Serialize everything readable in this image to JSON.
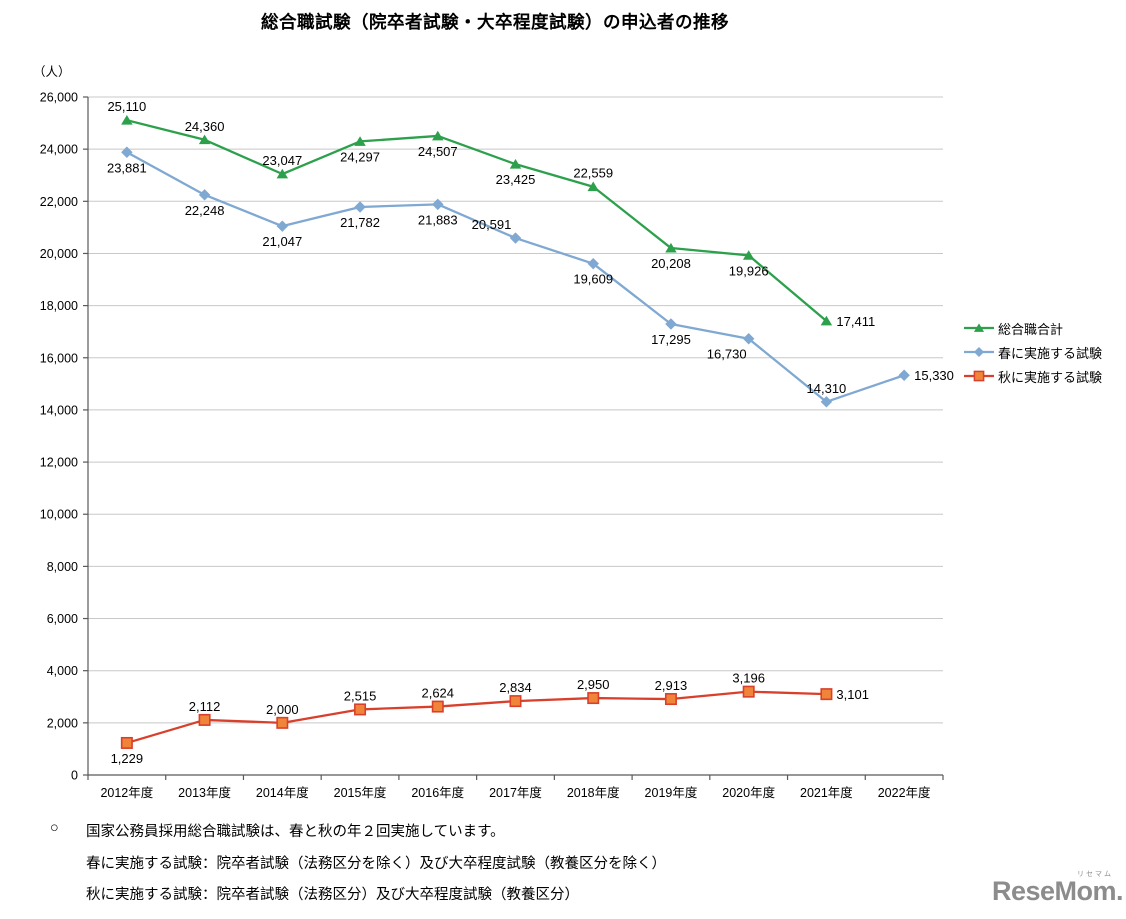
{
  "title": "総合職試験（院卒者試験・大卒程度試験）の申込者の推移",
  "y_axis_unit": "（人）",
  "legend": [
    {
      "label": "総合職合計"
    },
    {
      "label": "春に実施する試験"
    },
    {
      "label": "秋に実施する試験"
    }
  ],
  "notes": {
    "bullet": "○",
    "line1": "国家公務員採用総合職試験は、春と秋の年２回実施しています。",
    "line2": "春に実施する試験：院卒者試験（法務区分を除く）及び大卒程度試験（教養区分を除く）",
    "line3": "秋に実施する試験：院卒者試験（法務区分）及び大卒程度試験（教養区分）"
  },
  "logo": {
    "text": "ReseMom.",
    "ruby": "リセマム"
  },
  "colors": {
    "grid": "#c8c8c8",
    "axis": "#595959",
    "text": "#000000",
    "green": "#2da04c",
    "blue": "#7fa8d2",
    "red": "#d9402c",
    "orange": "#f0853a"
  },
  "chart_data": {
    "type": "line",
    "categories": [
      "2012年度",
      "2013年度",
      "2014年度",
      "2015年度",
      "2016年度",
      "2017年度",
      "2018年度",
      "2019年度",
      "2020年度",
      "2021年度",
      "2022年度"
    ],
    "title": "総合職試験（院卒者試験・大卒程度試験）の申込者の推移",
    "xlabel": "",
    "ylabel": "（人）",
    "ylim": [
      0,
      26000
    ],
    "ytick_step": 2000,
    "grid": true,
    "legend_position": "right",
    "series": [
      {
        "name": "総合職合計",
        "color": "#2da04c",
        "marker": "triangle",
        "values": [
          25110,
          24360,
          23047,
          24297,
          24507,
          23425,
          22559,
          20208,
          19926,
          17411,
          null
        ],
        "label_pos": [
          "above",
          "above",
          "above",
          "below",
          "below",
          "below",
          "above",
          "below",
          "below",
          "right",
          null
        ]
      },
      {
        "name": "春に実施する試験",
        "color": "#7fa8d2",
        "marker": "diamond",
        "values": [
          23881,
          22248,
          21047,
          21782,
          21883,
          20591,
          19609,
          17295,
          16730,
          14310,
          15330
        ],
        "label_pos": [
          "below",
          "below",
          "below",
          "below",
          "below",
          "above-left",
          "below",
          "below",
          "below-left",
          "above",
          "right"
        ]
      },
      {
        "name": "秋に実施する試験",
        "color": "#d9402c",
        "marker": "square",
        "marker_fill": "#f0853a",
        "values": [
          1229,
          2112,
          2000,
          2515,
          2624,
          2834,
          2950,
          2913,
          3196,
          3101,
          null
        ],
        "label_pos": [
          "below",
          "above",
          "above",
          "above",
          "above",
          "above",
          "above",
          "above",
          "above",
          "right",
          null
        ]
      }
    ]
  }
}
